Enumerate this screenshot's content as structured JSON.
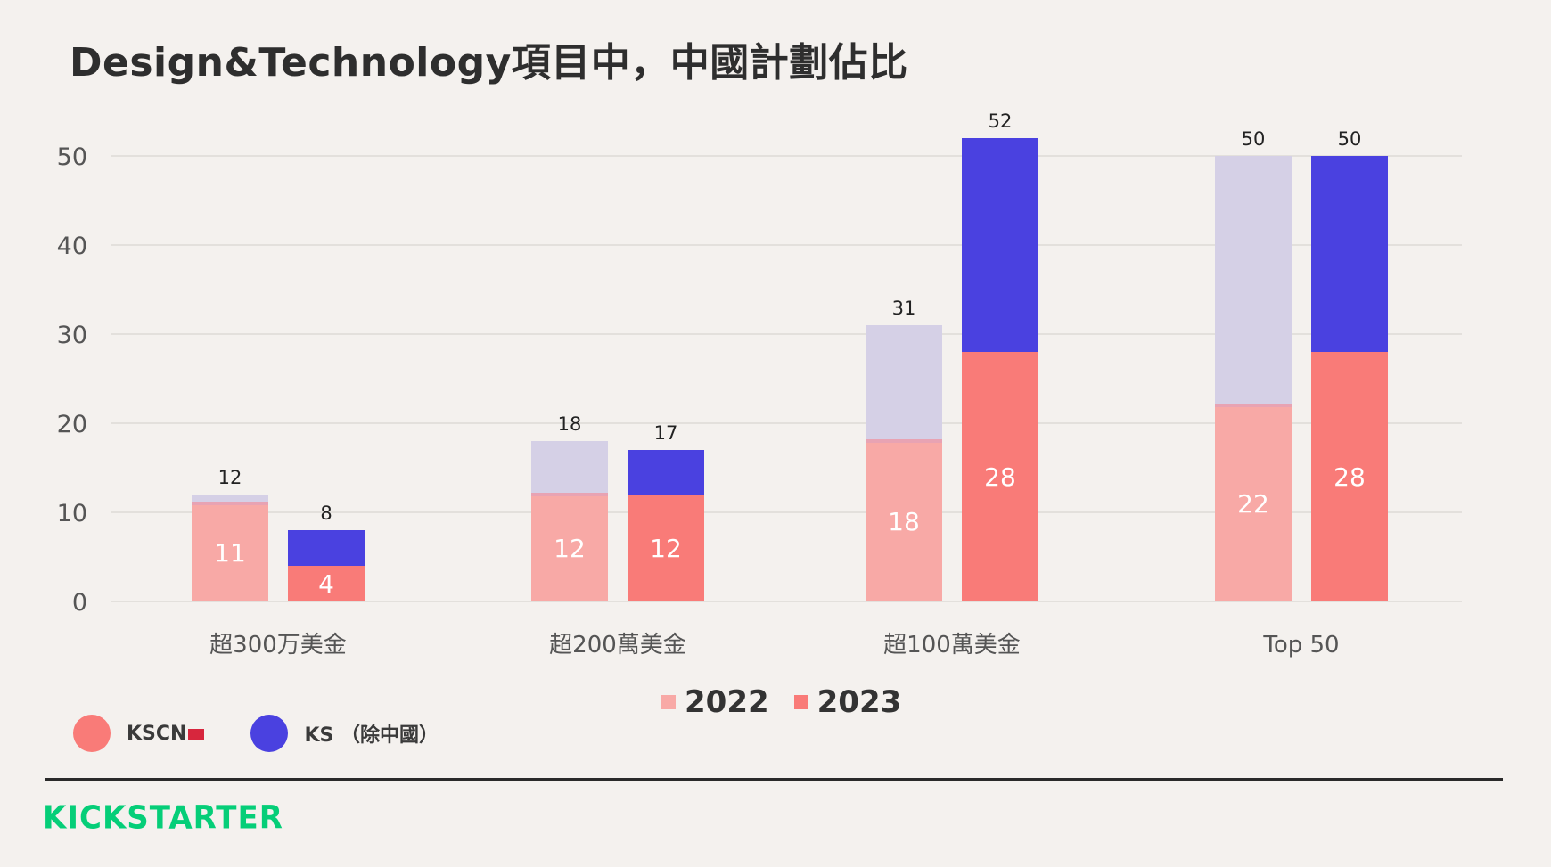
{
  "title": "Design&Technology項目中，中國計劃佔比",
  "colors": {
    "kscn_2022": "#f8a9a6",
    "ks_2022": "#d5d0e6",
    "kscn_2023": "#f97b78",
    "ks_2023": "#4a41e0",
    "background": "#f4f1ee",
    "grid": "#dddad6",
    "logo": "#05ce78"
  },
  "legend": {
    "years": [
      {
        "label": "2022",
        "color": "#f8a9a6"
      },
      {
        "label": "2023",
        "color": "#f97b78"
      }
    ],
    "regions": [
      {
        "label": "KSCN",
        "color": "#f97b78"
      },
      {
        "label": "KS （除中國）",
        "color": "#4a41e0"
      }
    ]
  },
  "logo": "KICKSTARTER",
  "chart_data": {
    "type": "bar",
    "stacked": true,
    "title": "Design&Technology項目中，中國計劃佔比",
    "categories": [
      "超300万美金",
      "超200萬美金",
      "超100萬美金",
      "Top 50"
    ],
    "series_years": [
      "2022",
      "2023"
    ],
    "yticks": [
      0,
      10,
      20,
      30,
      40,
      50
    ],
    "ylim": [
      0,
      55
    ],
    "grid": true,
    "bars": [
      {
        "category": "超300万美金",
        "year": "2022",
        "kscn": 11,
        "ks": 1,
        "total": 12
      },
      {
        "category": "超300万美金",
        "year": "2023",
        "kscn": 4,
        "ks": 4,
        "total": 8
      },
      {
        "category": "超200萬美金",
        "year": "2022",
        "kscn": 12,
        "ks": 6,
        "total": 18
      },
      {
        "category": "超200萬美金",
        "year": "2023",
        "kscn": 12,
        "ks": 5,
        "total": 17
      },
      {
        "category": "超100萬美金",
        "year": "2022",
        "kscn": 18,
        "ks": 13,
        "total": 31
      },
      {
        "category": "超100萬美金",
        "year": "2023",
        "kscn": 28,
        "ks": 24,
        "total": 52
      },
      {
        "category": "Top 50",
        "year": "2022",
        "kscn": 22,
        "ks": 28,
        "total": 50
      },
      {
        "category": "Top 50",
        "year": "2023",
        "kscn": 28,
        "ks": 22,
        "total": 50
      }
    ]
  }
}
